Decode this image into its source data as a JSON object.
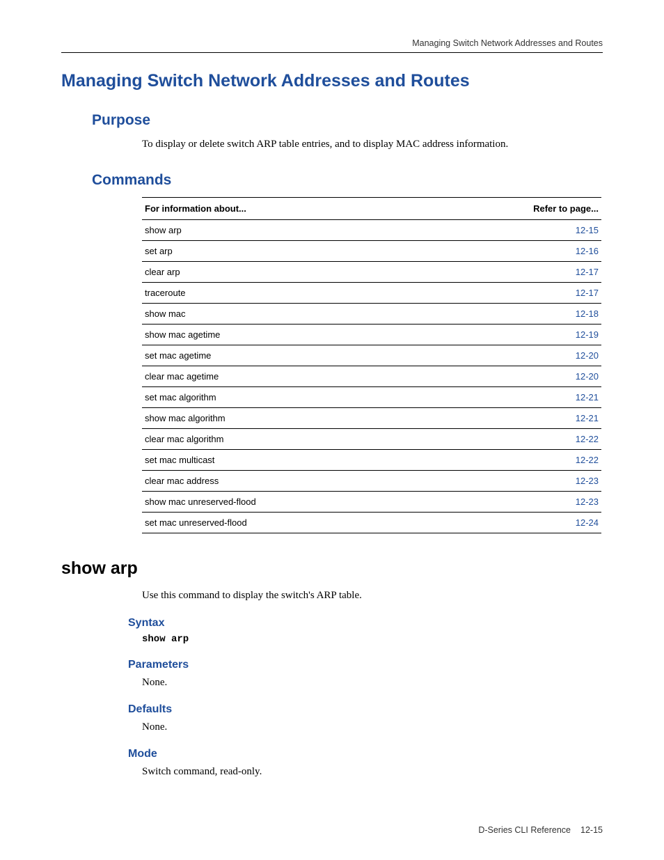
{
  "running_head": "Managing Switch Network Addresses and Routes",
  "title": "Managing Switch Network Addresses and Routes",
  "sections": {
    "purpose": {
      "heading": "Purpose",
      "body": "To display or delete switch ARP table entries, and to display MAC address information."
    },
    "commands": {
      "heading": "Commands",
      "table": {
        "header_left": "For information about...",
        "header_right": "Refer to page...",
        "rows": [
          {
            "label": "show arp",
            "page": "12-15"
          },
          {
            "label": "set arp",
            "page": "12-16"
          },
          {
            "label": "clear arp",
            "page": "12-17"
          },
          {
            "label": "traceroute",
            "page": "12-17"
          },
          {
            "label": "show mac",
            "page": "12-18"
          },
          {
            "label": "show mac agetime",
            "page": "12-19"
          },
          {
            "label": "set mac agetime",
            "page": "12-20"
          },
          {
            "label": "clear mac agetime",
            "page": "12-20"
          },
          {
            "label": "set mac algorithm",
            "page": "12-21"
          },
          {
            "label": "show mac algorithm",
            "page": "12-21"
          },
          {
            "label": "clear mac algorithm",
            "page": "12-22"
          },
          {
            "label": "set mac multicast",
            "page": "12-22"
          },
          {
            "label": "clear mac address",
            "page": "12-23"
          },
          {
            "label": "show mac unreserved-flood",
            "page": "12-23"
          },
          {
            "label": "set mac unreserved-flood",
            "page": "12-24"
          }
        ]
      }
    }
  },
  "command_detail": {
    "heading": "show arp",
    "description": "Use this command to display the switch's ARP table.",
    "syntax_heading": "Syntax",
    "syntax_code": "show arp",
    "parameters_heading": "Parameters",
    "parameters_body": "None.",
    "defaults_heading": "Defaults",
    "defaults_body": "None.",
    "mode_heading": "Mode",
    "mode_body": "Switch command, read-only."
  },
  "footer": {
    "doc": "D-Series CLI Reference",
    "page": "12-15"
  },
  "colors": {
    "heading_blue": "#1f4e9b",
    "link_blue": "#1f4e9b",
    "text": "#000000",
    "rule": "#000000",
    "background": "#ffffff"
  },
  "typography": {
    "heading_font": "Arial",
    "body_font": "Palatino",
    "mono_font": "Courier New",
    "title_size_pt": 19,
    "section_size_pt": 16,
    "subhead_size_pt": 12,
    "body_size_pt": 11,
    "table_size_pt": 10
  }
}
